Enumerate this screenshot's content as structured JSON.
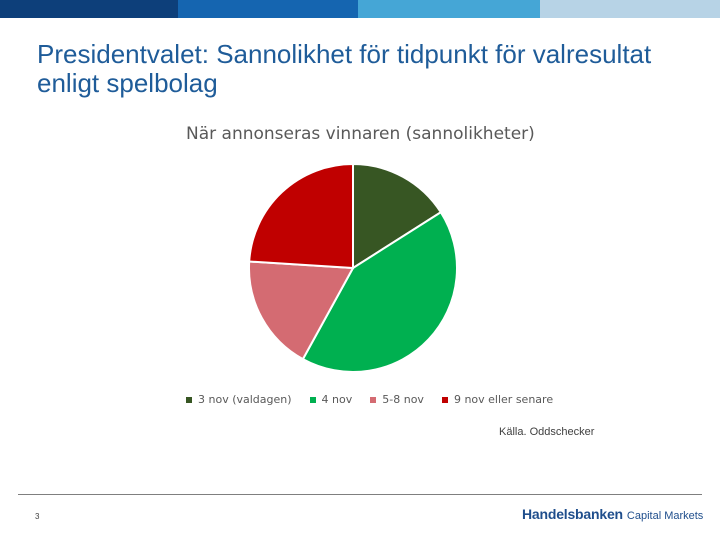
{
  "header_bar": {
    "colors": [
      "#0d3f7a",
      "#1565b0",
      "#45a6d6",
      "#b7d3e6"
    ]
  },
  "slide": {
    "title": "Presidentvalet: Sannolikhet för tidpunkt för valresultat enligt spelbolag",
    "source": "Källa. Oddschecker",
    "page_number": "3",
    "brand_name": "Handelsbanken",
    "brand_sub": "Capital Markets"
  },
  "chart_data": {
    "type": "pie",
    "title": "När annonseras vinnaren (sannolikheter)",
    "start_angle_deg": 0,
    "direction": "clockwise",
    "slices": [
      {
        "label": "3 nov (valdagen)",
        "value": 16,
        "color": "#375623"
      },
      {
        "label": "4 nov",
        "value": 42,
        "color": "#00b050"
      },
      {
        "label": "5-8 nov",
        "value": 18,
        "color": "#d46b72"
      },
      {
        "label": "9 nov eller senare",
        "value": 24,
        "color": "#c00000"
      }
    ],
    "legend_position": "bottom"
  }
}
